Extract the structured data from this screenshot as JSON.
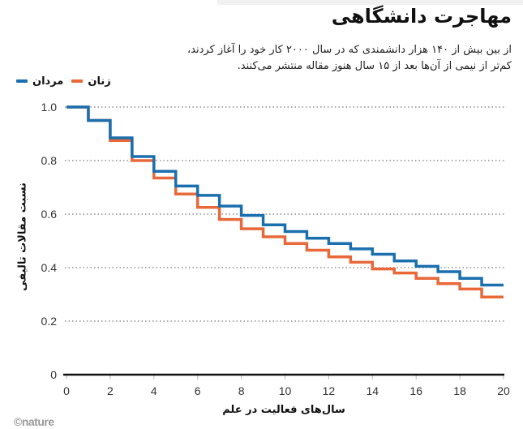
{
  "header": {
    "title": "مهاجرت دانشگاهی",
    "subtitle_lines": [
      "از بین بیش از ۱۴۰ هزار دانشمندی که در سال ۲۰۰۰ کار خود را آغاز کردند،",
      "کم‌تر از نیمی از آن‌ها بعد از ۱۵ سال هنوز مقاله منتشر می‌کنند."
    ]
  },
  "legend": {
    "items": [
      {
        "label": "مردان",
        "color": "#1a6fae"
      },
      {
        "label": "زنان",
        "color": "#e8683a"
      }
    ]
  },
  "axes": {
    "ylabel": "نسبت مقالات تالیفی",
    "xlabel": "سال‌های فعالیت در علم"
  },
  "credit": "©nature",
  "chart_data": {
    "type": "line",
    "step": true,
    "title": "مهاجرت دانشگاهی",
    "subtitle": "از بین بیش از ۱۴۰ هزار دانشمندی که در سال ۲۰۰۰ کار خود را آغاز کردند، کم‌تر از نیمی از آن‌ها بعد از ۱۵ سال هنوز مقاله منتشر می‌کنند.",
    "xlabel": "سال‌های فعالیت در علم",
    "ylabel": "نسبت مقالات تالیفی",
    "x": [
      0,
      1,
      2,
      3,
      4,
      5,
      6,
      7,
      8,
      9,
      10,
      11,
      12,
      13,
      14,
      15,
      16,
      17,
      18,
      19,
      20
    ],
    "series": [
      {
        "name": "مردان",
        "color": "#1a6fae",
        "values": [
          1.0,
          0.95,
          0.885,
          0.815,
          0.76,
          0.705,
          0.67,
          0.63,
          0.595,
          0.56,
          0.535,
          0.51,
          0.49,
          0.47,
          0.45,
          0.425,
          0.405,
          0.385,
          0.36,
          0.335,
          0.335
        ]
      },
      {
        "name": "زنان",
        "color": "#e8683a",
        "values": [
          1.0,
          0.95,
          0.875,
          0.8,
          0.735,
          0.675,
          0.625,
          0.58,
          0.545,
          0.515,
          0.49,
          0.465,
          0.44,
          0.42,
          0.395,
          0.38,
          0.36,
          0.34,
          0.32,
          0.29,
          0.29
        ]
      }
    ],
    "xlim": [
      0,
      20
    ],
    "ylim": [
      0,
      1.0
    ],
    "xticks": [
      0,
      2,
      4,
      6,
      8,
      10,
      12,
      14,
      16,
      18,
      20
    ],
    "yticks": [
      0,
      0.2,
      0.4,
      0.6,
      0.8,
      1.0
    ],
    "ytick_labels": [
      "0",
      "0.2",
      "0.4",
      "0.6",
      "0.8",
      "1.0"
    ],
    "grid": "horizontal dotted",
    "legend_position": "top-left"
  }
}
